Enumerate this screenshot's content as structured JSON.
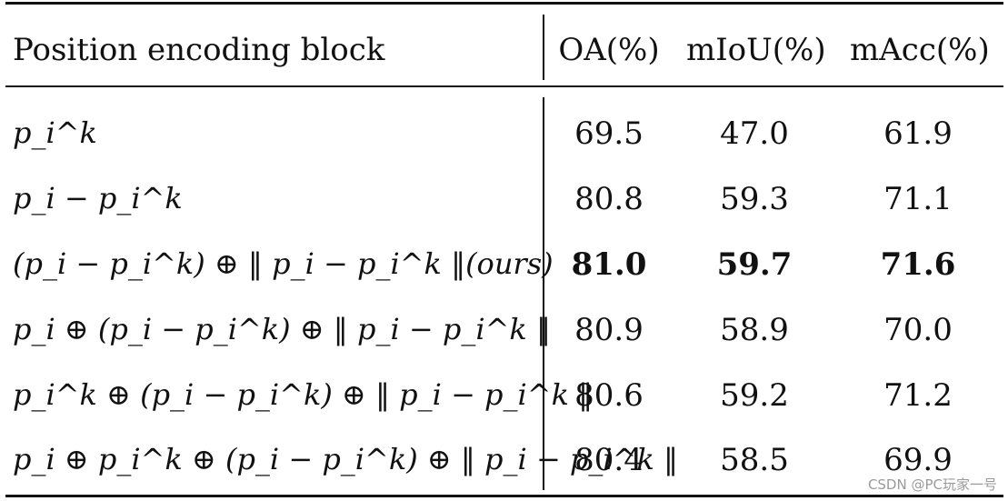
{
  "table": {
    "headers": [
      "Position encoding block",
      "OA(%)",
      "mIoU(%)",
      "mAcc(%)"
    ],
    "rows": [
      {
        "label": "p_i^k",
        "oa": "69.5",
        "miou": "47.0",
        "macc": "61.9",
        "bold": false
      },
      {
        "label": "p_i − p_i^k",
        "oa": "80.8",
        "miou": "59.3",
        "macc": "71.1",
        "bold": false
      },
      {
        "label": "(p_i − p_i^k) ⊕ ‖ p_i − p_i^k ‖(ours)",
        "oa": "81.0",
        "miou": "59.7",
        "macc": "71.6",
        "bold": true
      },
      {
        "label": "p_i ⊕ (p_i − p_i^k) ⊕ ‖ p_i − p_i^k ‖",
        "oa": "80.9",
        "miou": "58.9",
        "macc": "70.0",
        "bold": false
      },
      {
        "label": "p_i^k ⊕ (p_i − p_i^k) ⊕ ‖ p_i − p_i^k ‖",
        "oa": "80.6",
        "miou": "59.2",
        "macc": "71.2",
        "bold": false
      },
      {
        "label": "p_i ⊕ p_i^k ⊕ (p_i − p_i^k) ⊕ ‖ p_i − p_i^k ‖",
        "oa": "80.4",
        "miou": "58.5",
        "macc": "69.9",
        "bold": false
      }
    ]
  },
  "watermark": "CSDN @PC玩家一号"
}
